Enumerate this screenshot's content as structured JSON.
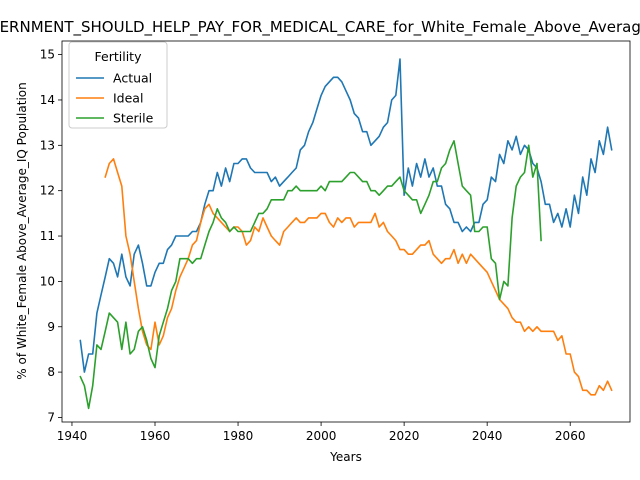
{
  "chart_data": {
    "type": "line",
    "title": "GOVERNMENT_SHOULD_HELP_PAY_FOR_MEDICAL_CARE_for_White_Female_Above_Average_IQ",
    "xlabel": "Years",
    "ylabel": "% of White_Female Above_Average_IQ Population",
    "xlim": [
      1937.6,
      2074.4
    ],
    "ylim": [
      6.9,
      15.3
    ],
    "xticks": [
      1940,
      1960,
      1980,
      2000,
      2020,
      2040,
      2060
    ],
    "yticks": [
      7,
      8,
      9,
      10,
      11,
      12,
      13,
      14,
      15
    ],
    "grid": false,
    "legend": {
      "title": "Fertility",
      "placement": "upper-left"
    },
    "series": [
      {
        "name": "Actual",
        "color": "#1f77b4",
        "x": [
          1942,
          1943,
          1944,
          1945,
          1946,
          1947,
          1948,
          1949,
          1950,
          1951,
          1952,
          1953,
          1954,
          1955,
          1956,
          1957,
          1958,
          1959,
          1960,
          1961,
          1962,
          1963,
          1964,
          1965,
          1966,
          1967,
          1968,
          1969,
          1970,
          1971,
          1972,
          1973,
          1974,
          1975,
          1976,
          1977,
          1978,
          1979,
          1980,
          1981,
          1982,
          1983,
          1984,
          1985,
          1986,
          1987,
          1988,
          1989,
          1990,
          1991,
          1992,
          1993,
          1994,
          1995,
          1996,
          1997,
          1998,
          1999,
          2000,
          2001,
          2002,
          2003,
          2004,
          2005,
          2006,
          2007,
          2008,
          2009,
          2010,
          2011,
          2012,
          2013,
          2014,
          2015,
          2016,
          2017,
          2018,
          2019,
          2020,
          2021,
          2022,
          2023,
          2024,
          2025,
          2026,
          2027,
          2028,
          2029,
          2030,
          2031,
          2032,
          2033,
          2034,
          2035,
          2036,
          2037,
          2038,
          2039,
          2040,
          2041,
          2042,
          2043,
          2044,
          2045,
          2046,
          2047,
          2048,
          2049,
          2050,
          2051,
          2052,
          2053,
          2054,
          2055,
          2056,
          2057,
          2058,
          2059,
          2060,
          2061,
          2062,
          2063,
          2064,
          2065,
          2066,
          2067,
          2068,
          2069,
          2070
        ],
        "values": [
          8.7,
          8.0,
          8.4,
          8.4,
          9.3,
          9.7,
          10.1,
          10.5,
          10.4,
          10.1,
          10.6,
          10.1,
          9.9,
          10.6,
          10.8,
          10.4,
          9.9,
          9.9,
          10.2,
          10.4,
          10.4,
          10.7,
          10.8,
          11.0,
          11.0,
          11.0,
          11.0,
          11.1,
          11.1,
          11.3,
          11.7,
          12.0,
          12.0,
          12.4,
          12.1,
          12.5,
          12.2,
          12.6,
          12.6,
          12.7,
          12.7,
          12.5,
          12.4,
          12.4,
          12.4,
          12.4,
          12.2,
          12.3,
          12.1,
          12.2,
          12.3,
          12.4,
          12.5,
          12.9,
          13.0,
          13.3,
          13.5,
          13.8,
          14.1,
          14.3,
          14.4,
          14.5,
          14.5,
          14.4,
          14.2,
          14.0,
          13.7,
          13.6,
          13.3,
          13.3,
          13.0,
          13.1,
          13.2,
          13.4,
          13.5,
          14.0,
          14.1,
          14.9,
          11.9,
          12.5,
          12.1,
          12.6,
          12.3,
          12.7,
          12.3,
          12.5,
          12.1,
          12.1,
          11.7,
          11.6,
          11.3,
          11.3,
          11.1,
          11.2,
          11.1,
          11.3,
          11.3,
          11.7,
          11.8,
          12.3,
          12.2,
          12.8,
          12.6,
          13.1,
          12.9,
          13.2,
          12.8,
          13.0,
          12.9,
          12.6,
          12.5,
          12.2,
          11.7,
          11.7,
          11.3,
          11.5,
          11.2,
          11.6,
          11.2,
          11.9,
          11.5,
          12.3,
          11.9,
          12.7,
          12.4,
          13.1,
          12.8,
          13.4,
          12.9
        ]
      },
      {
        "name": "Ideal",
        "color": "#ff7f0e",
        "x": [
          1948,
          1949,
          1950,
          1951,
          1952,
          1953,
          1954,
          1955,
          1956,
          1957,
          1958,
          1959,
          1960,
          1961,
          1962,
          1963,
          1964,
          1965,
          1966,
          1967,
          1968,
          1969,
          1970,
          1971,
          1972,
          1973,
          1974,
          1975,
          1976,
          1977,
          1978,
          1979,
          1980,
          1981,
          1982,
          1983,
          1984,
          1985,
          1986,
          1987,
          1988,
          1989,
          1990,
          1991,
          1992,
          1993,
          1994,
          1995,
          1996,
          1997,
          1998,
          1999,
          2000,
          2001,
          2002,
          2003,
          2004,
          2005,
          2006,
          2007,
          2008,
          2009,
          2010,
          2011,
          2012,
          2013,
          2014,
          2015,
          2016,
          2017,
          2018,
          2019,
          2020,
          2021,
          2022,
          2023,
          2024,
          2025,
          2026,
          2027,
          2028,
          2029,
          2030,
          2031,
          2032,
          2033,
          2034,
          2035,
          2036,
          2037,
          2038,
          2039,
          2040,
          2041,
          2042,
          2043,
          2044,
          2045,
          2046,
          2047,
          2048,
          2049,
          2050,
          2051,
          2052,
          2053,
          2054,
          2055,
          2056,
          2057,
          2058,
          2059,
          2060,
          2061,
          2062,
          2063,
          2064,
          2065,
          2066,
          2067,
          2068,
          2069,
          2070
        ],
        "values": [
          12.3,
          12.6,
          12.7,
          12.4,
          12.1,
          11.0,
          10.6,
          10.0,
          9.4,
          8.9,
          8.6,
          8.5,
          9.1,
          8.6,
          8.8,
          9.2,
          9.4,
          9.8,
          10.1,
          10.3,
          10.5,
          10.8,
          10.9,
          11.3,
          11.6,
          11.7,
          11.5,
          11.4,
          11.3,
          11.2,
          11.1,
          11.2,
          11.2,
          11.1,
          10.8,
          10.9,
          11.2,
          11.1,
          11.4,
          11.2,
          11.0,
          10.9,
          10.8,
          11.1,
          11.2,
          11.3,
          11.4,
          11.3,
          11.3,
          11.4,
          11.4,
          11.4,
          11.5,
          11.5,
          11.3,
          11.2,
          11.4,
          11.3,
          11.4,
          11.4,
          11.2,
          11.3,
          11.3,
          11.3,
          11.3,
          11.5,
          11.2,
          11.3,
          11.1,
          11.0,
          10.9,
          10.7,
          10.7,
          10.6,
          10.6,
          10.7,
          10.8,
          10.8,
          10.9,
          10.6,
          10.5,
          10.4,
          10.5,
          10.5,
          10.7,
          10.4,
          10.6,
          10.4,
          10.6,
          10.5,
          10.4,
          10.3,
          10.2,
          10.0,
          9.8,
          9.6,
          9.5,
          9.4,
          9.2,
          9.1,
          9.1,
          8.9,
          9.0,
          8.9,
          9.0,
          8.9,
          8.9,
          8.9,
          8.9,
          8.7,
          8.8,
          8.4,
          8.4,
          8.0,
          7.9,
          7.6,
          7.6,
          7.5,
          7.5,
          7.7,
          7.6,
          7.8,
          7.6
        ]
      },
      {
        "name": "Sterile",
        "color": "#2ca02c",
        "x": [
          1942,
          1943,
          1944,
          1945,
          1946,
          1947,
          1948,
          1949,
          1950,
          1951,
          1952,
          1953,
          1954,
          1955,
          1956,
          1957,
          1958,
          1959,
          1960,
          1961,
          1962,
          1963,
          1964,
          1965,
          1966,
          1967,
          1968,
          1969,
          1970,
          1971,
          1972,
          1973,
          1974,
          1975,
          1976,
          1977,
          1978,
          1979,
          1980,
          1981,
          1982,
          1983,
          1984,
          1985,
          1986,
          1987,
          1988,
          1989,
          1990,
          1991,
          1992,
          1993,
          1994,
          1995,
          1996,
          1997,
          1998,
          1999,
          2000,
          2001,
          2002,
          2003,
          2004,
          2005,
          2006,
          2007,
          2008,
          2009,
          2010,
          2011,
          2012,
          2013,
          2014,
          2015,
          2016,
          2017,
          2018,
          2019,
          2020,
          2021,
          2022,
          2023,
          2024,
          2025,
          2026,
          2027,
          2028,
          2029,
          2030,
          2031,
          2032,
          2033,
          2034,
          2035,
          2036,
          2037,
          2038,
          2039,
          2040,
          2041,
          2042,
          2043,
          2044,
          2045,
          2046,
          2047,
          2048,
          2049,
          2050,
          2051,
          2052,
          2053
        ],
        "values": [
          7.9,
          7.7,
          7.2,
          7.7,
          8.6,
          8.5,
          8.9,
          9.3,
          9.2,
          9.1,
          8.5,
          9.1,
          8.4,
          8.5,
          8.9,
          9.0,
          8.7,
          8.3,
          8.1,
          8.8,
          9.1,
          9.4,
          9.8,
          10.0,
          10.5,
          10.5,
          10.5,
          10.4,
          10.5,
          10.5,
          10.8,
          11.1,
          11.3,
          11.6,
          11.4,
          11.3,
          11.1,
          11.2,
          11.1,
          11.1,
          11.1,
          11.1,
          11.3,
          11.5,
          11.5,
          11.6,
          11.8,
          11.8,
          11.8,
          11.8,
          12.0,
          12.0,
          12.1,
          12.0,
          12.0,
          12.0,
          12.0,
          12.0,
          12.1,
          12.0,
          12.2,
          12.2,
          12.2,
          12.2,
          12.3,
          12.4,
          12.4,
          12.3,
          12.2,
          12.2,
          12.0,
          12.0,
          11.9,
          12.0,
          12.1,
          12.1,
          12.2,
          12.3,
          12.0,
          11.9,
          11.8,
          11.8,
          11.5,
          11.7,
          11.9,
          12.2,
          12.2,
          12.5,
          12.6,
          12.9,
          13.1,
          12.6,
          12.1,
          12.0,
          11.9,
          11.1,
          11.1,
          11.2,
          11.2,
          10.5,
          10.4,
          9.6,
          10.0,
          9.9,
          11.4,
          12.1,
          12.3,
          12.4,
          13.0,
          12.3,
          12.6,
          10.9
        ]
      }
    ]
  }
}
